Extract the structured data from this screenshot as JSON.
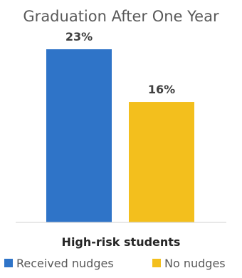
{
  "chart_data": {
    "type": "bar",
    "title": "Graduation After One Year",
    "categories": [
      "High-risk students"
    ],
    "series": [
      {
        "name": "Received nudges",
        "values": [
          23
        ],
        "labels": [
          "23%"
        ],
        "color": "#2f74c8"
      },
      {
        "name": "No nudges",
        "values": [
          16
        ],
        "labels": [
          "16%"
        ],
        "color": "#f3bf1d"
      }
    ],
    "ylim": [
      0,
      25
    ],
    "grid": false,
    "legend_position": "bottom"
  },
  "colors": {
    "title": "#595959",
    "data_label": "#404040",
    "category_label": "#262626",
    "legend_text": "#595959",
    "axis_line": "#d9d9d9"
  }
}
